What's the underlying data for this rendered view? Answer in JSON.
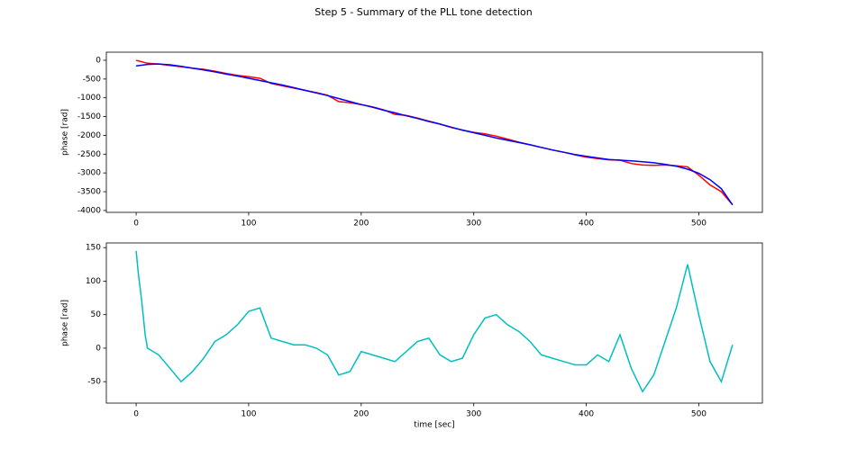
{
  "title": "Step 5 - Summary of the PLL tone detection",
  "chart_data": [
    {
      "type": "line",
      "y_label": "phase [rad]",
      "x": [
        0,
        10,
        20,
        30,
        40,
        50,
        60,
        70,
        80,
        90,
        100,
        110,
        120,
        130,
        140,
        150,
        160,
        170,
        180,
        190,
        200,
        210,
        220,
        230,
        240,
        250,
        260,
        270,
        280,
        290,
        300,
        310,
        320,
        330,
        340,
        350,
        360,
        370,
        380,
        390,
        400,
        410,
        420,
        430,
        440,
        450,
        460,
        470,
        480,
        490,
        500,
        510,
        520,
        530
      ],
      "series": [
        {
          "color": "#ff0000",
          "values": [
            0,
            -80,
            -100,
            -140,
            -170,
            -210,
            -240,
            -290,
            -350,
            -400,
            -440,
            -480,
            -620,
            -680,
            -740,
            -800,
            -860,
            -930,
            -1100,
            -1130,
            -1180,
            -1240,
            -1320,
            -1440,
            -1470,
            -1540,
            -1620,
            -1700,
            -1790,
            -1860,
            -1920,
            -1960,
            -2020,
            -2100,
            -2180,
            -2250,
            -2320,
            -2390,
            -2450,
            -2520,
            -2580,
            -2620,
            -2650,
            -2660,
            -2750,
            -2790,
            -2800,
            -2790,
            -2810,
            -2840,
            -3060,
            -3320,
            -3500,
            -3850
          ]
        },
        {
          "color": "#0000ff",
          "values": [
            -150,
            -110,
            -100,
            -120,
            -160,
            -210,
            -260,
            -310,
            -370,
            -420,
            -480,
            -540,
            -600,
            -660,
            -730,
            -800,
            -870,
            -940,
            -1020,
            -1100,
            -1180,
            -1250,
            -1330,
            -1400,
            -1480,
            -1550,
            -1630,
            -1700,
            -1780,
            -1860,
            -1930,
            -2000,
            -2070,
            -2130,
            -2190,
            -2250,
            -2320,
            -2390,
            -2450,
            -2510,
            -2560,
            -2600,
            -2640,
            -2660,
            -2680,
            -2700,
            -2730,
            -2770,
            -2820,
            -2900,
            -3010,
            -3180,
            -3420,
            -3850
          ]
        }
      ],
      "xlim": [
        -26.5,
        556.5
      ],
      "xticks": [
        0,
        100,
        200,
        300,
        400,
        500
      ],
      "ylim": [
        -4050,
        215
      ],
      "yticks": [
        0,
        -500,
        -1000,
        -1500,
        -2000,
        -2500,
        -3000,
        -3500,
        -4000
      ]
    },
    {
      "type": "line",
      "y_label": "phase [rad]",
      "x_label": "time [sec]",
      "x": [
        0,
        2,
        5,
        8,
        10,
        20,
        30,
        40,
        50,
        60,
        70,
        80,
        90,
        100,
        110,
        120,
        130,
        140,
        150,
        160,
        170,
        180,
        190,
        200,
        210,
        220,
        230,
        240,
        250,
        260,
        270,
        280,
        290,
        300,
        310,
        320,
        330,
        340,
        350,
        360,
        370,
        380,
        390,
        400,
        410,
        420,
        430,
        440,
        450,
        460,
        470,
        480,
        490,
        500,
        510,
        520,
        530
      ],
      "series": [
        {
          "color": "#00bfbf",
          "values": [
            145,
            110,
            70,
            20,
            0,
            -10,
            -30,
            -50,
            -35,
            -15,
            10,
            20,
            35,
            55,
            60,
            15,
            10,
            5,
            5,
            0,
            -10,
            -40,
            -35,
            -5,
            -10,
            -15,
            -20,
            -5,
            10,
            15,
            -10,
            -20,
            -15,
            20,
            45,
            50,
            35,
            25,
            10,
            -10,
            -15,
            -20,
            -25,
            -25,
            -10,
            -20,
            20,
            -30,
            -65,
            -40,
            10,
            60,
            125,
            50,
            -20,
            -50,
            5
          ]
        }
      ],
      "xlim": [
        -26.5,
        556.5
      ],
      "xticks": [
        0,
        100,
        200,
        300,
        400,
        500
      ],
      "ylim": [
        -82,
        157
      ],
      "yticks": [
        -50,
        0,
        50,
        100,
        150
      ]
    }
  ]
}
